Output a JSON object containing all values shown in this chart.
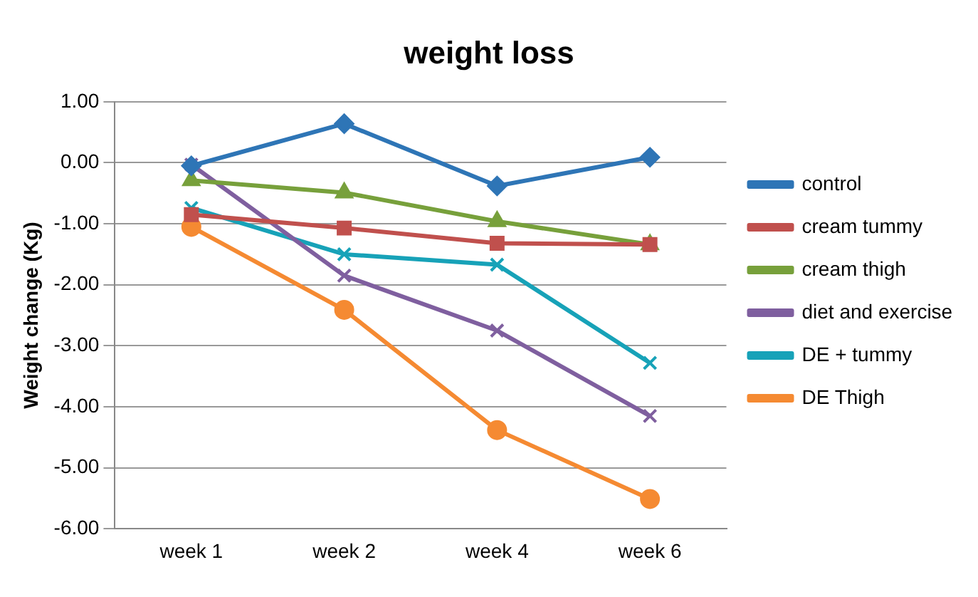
{
  "chart_data": {
    "type": "line",
    "title": "weight loss",
    "ylabel": "Weight change (Kg)",
    "categories": [
      "week 1",
      "week 2",
      "week 4",
      "week 6"
    ],
    "series": [
      {
        "name": "control",
        "color": "#2e75b6",
        "marker": "diamond",
        "values": [
          -0.05,
          0.64,
          -0.38,
          0.09
        ]
      },
      {
        "name": "cream tummy",
        "color": "#c0504d",
        "marker": "square",
        "values": [
          -0.85,
          -1.07,
          -1.32,
          -1.34
        ]
      },
      {
        "name": "cream thigh",
        "color": "#77a03b",
        "marker": "triangle",
        "values": [
          -0.29,
          -0.49,
          -0.96,
          -1.34
        ]
      },
      {
        "name": "diet and exercise",
        "color": "#7f5f9f",
        "marker": "cross",
        "values": [
          -0.03,
          -1.85,
          -2.75,
          -4.15
        ]
      },
      {
        "name": "DE + tummy",
        "color": "#17a2b8",
        "marker": "cross",
        "values": [
          -0.74,
          -1.5,
          -1.67,
          -3.28
        ]
      },
      {
        "name": "DE Thigh",
        "color": "#f58a32",
        "marker": "circle",
        "values": [
          -1.05,
          -2.41,
          -4.38,
          -5.51
        ]
      }
    ],
    "ylim": [
      -6,
      1
    ],
    "yticks": [
      {
        "value": -6,
        "label": "-6.00"
      },
      {
        "value": -5,
        "label": "-5.00"
      },
      {
        "value": -4,
        "label": "-4.00"
      },
      {
        "value": -3,
        "label": "-3.00"
      },
      {
        "value": -2,
        "label": "-2.00"
      },
      {
        "value": -1,
        "label": "-1.00"
      },
      {
        "value": 0,
        "label": "0.00"
      },
      {
        "value": 1,
        "label": "1.00"
      }
    ],
    "grid": "y",
    "legend": "right"
  }
}
